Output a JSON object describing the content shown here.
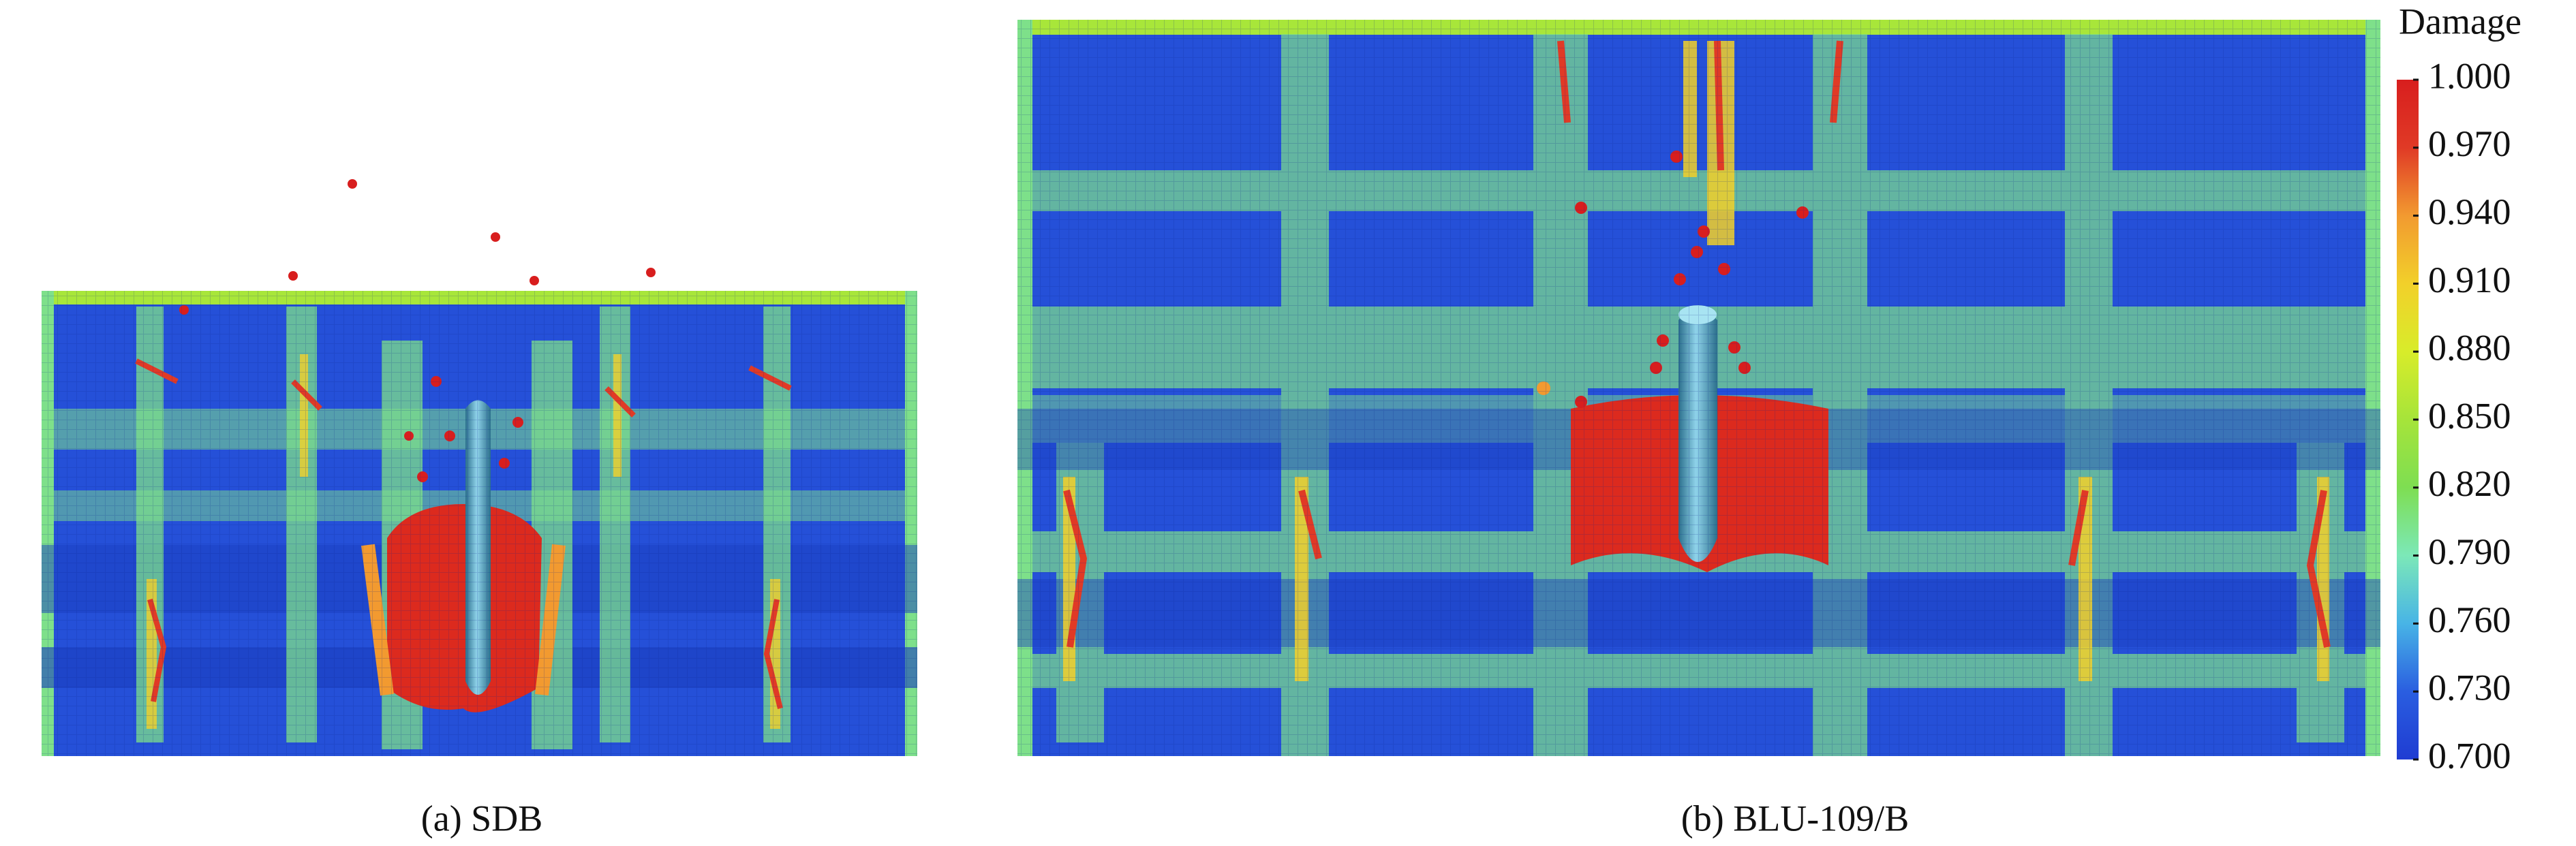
{
  "panels": [
    {
      "caption": "(a) SDB"
    },
    {
      "caption": "(b) BLU-109/B"
    }
  ],
  "colorbar": {
    "title": "Damage",
    "lim": [
      0.7,
      1
    ],
    "ticks": [
      {
        "value": 1,
        "label": "1.000"
      },
      {
        "value": 0.97,
        "label": "0.970"
      },
      {
        "value": 0.94,
        "label": "0.940"
      },
      {
        "value": 0.91,
        "label": "0.910"
      },
      {
        "value": 0.88,
        "label": "0.880"
      },
      {
        "value": 0.85,
        "label": "0.850"
      },
      {
        "value": 0.82,
        "label": "0.820"
      },
      {
        "value": 0.79,
        "label": "0.790"
      },
      {
        "value": 0.76,
        "label": "0.760"
      },
      {
        "value": 0.73,
        "label": "0.730"
      },
      {
        "value": 0.7,
        "label": "0.700"
      }
    ],
    "colors": [
      "#1f3cd2",
      "#2a5ee0",
      "#48b4e6",
      "#7ce8b8",
      "#7ede52",
      "#a6e43a",
      "#d8ec2a",
      "#f2d02a",
      "#f29a30",
      "#e03a26",
      "#d81e1e"
    ]
  }
}
